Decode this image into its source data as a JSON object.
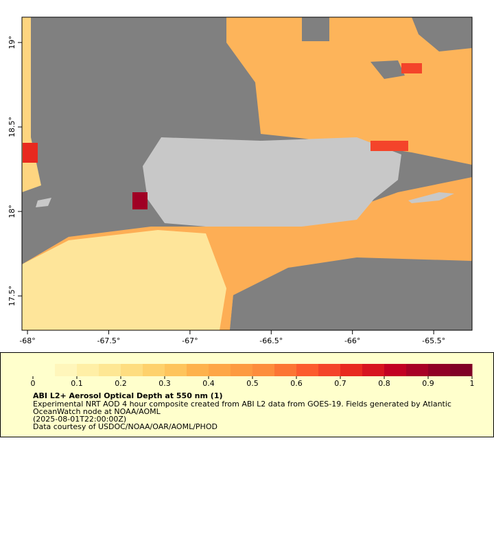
{
  "map": {
    "xlim": [
      -68.034,
      -65.264
    ],
    "ylim": [
      17.297,
      19.15
    ],
    "xticks": [
      {
        "value": -68,
        "label": "-68°"
      },
      {
        "value": -67.5,
        "label": "-67.5°"
      },
      {
        "value": -67,
        "label": "-67°"
      },
      {
        "value": -66.5,
        "label": "-66.5°"
      },
      {
        "value": -66,
        "label": "-66°"
      },
      {
        "value": -65.5,
        "label": "-65.5°"
      }
    ],
    "yticks": [
      {
        "value": 19,
        "label": "19°"
      },
      {
        "value": 18.5,
        "label": "18.5°"
      },
      {
        "value": 18,
        "label": "18°"
      },
      {
        "value": 17.5,
        "label": "17.5°"
      }
    ]
  },
  "colorbar": {
    "clim": [
      0,
      1
    ],
    "ticks": [
      0,
      0.1,
      0.2,
      0.3,
      0.4,
      0.5,
      0.6,
      0.7,
      0.8,
      0.9,
      1
    ],
    "colors": [
      "#ffffcc",
      "#fff6bb",
      "#ffefa6",
      "#fee794",
      "#fedd80",
      "#fed16c",
      "#fec45c",
      "#feb24c",
      "#fea646",
      "#fd9a41",
      "#fd8d3c",
      "#fc7534",
      "#fc5b2e",
      "#f4442a",
      "#e8291f",
      "#d7141f",
      "#c20023",
      "#a80026",
      "#900026",
      "#800026"
    ],
    "title": "ABI L2+ Aerosol Optical Depth at 550 nm (1)",
    "lines": [
      "Experimental NRT AOD 4 hour composite created from ABI L2 data from GOES-19. Fields generated by Atlantic",
      "OceanWatch node at NOAA/AOML",
      "(2025-08-01T22:00:00Z)",
      "Data courtesy of USDOC/NOAA/OAR/AOML/PHOD"
    ]
  }
}
